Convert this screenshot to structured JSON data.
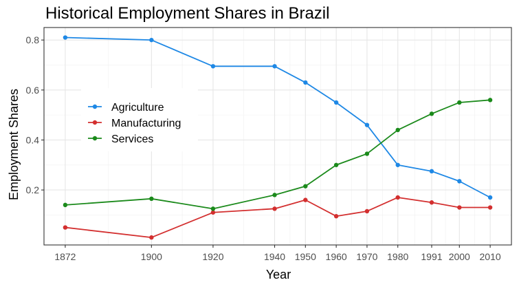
{
  "chart_data": {
    "type": "line",
    "title": "Historical Employment Shares in Brazil",
    "xlabel": "Year",
    "ylabel": "Employment Shares",
    "x": [
      1872,
      1900,
      1920,
      1940,
      1950,
      1960,
      1970,
      1980,
      1991,
      2000,
      2010
    ],
    "x_tick_labels": [
      "1872",
      "1900",
      "1920",
      "1940",
      "1950",
      "1960",
      "1970",
      "1980",
      "1991",
      "2000",
      "2010"
    ],
    "y_ticks": [
      0.2,
      0.4,
      0.6,
      0.8
    ],
    "y_tick_labels": [
      "0.2",
      "0.4",
      "0.6",
      "0.8"
    ],
    "ylim": [
      -0.02,
      0.85
    ],
    "grid": true,
    "legend_position": "left-inside",
    "series": [
      {
        "name": "Agriculture",
        "color": "#1e88e5",
        "values": [
          0.81,
          0.8,
          0.695,
          0.695,
          0.63,
          0.55,
          0.46,
          0.3,
          0.275,
          0.235,
          0.17
        ]
      },
      {
        "name": "Manufacturing",
        "color": "#d32f2f",
        "values": [
          0.05,
          0.01,
          0.11,
          0.125,
          0.16,
          0.095,
          0.115,
          0.17,
          0.15,
          0.13,
          0.13
        ]
      },
      {
        "name": "Services",
        "color": "#1b8a1b",
        "values": [
          0.14,
          0.165,
          0.125,
          0.18,
          0.215,
          0.3,
          0.345,
          0.44,
          0.505,
          0.55,
          0.56
        ]
      }
    ]
  }
}
